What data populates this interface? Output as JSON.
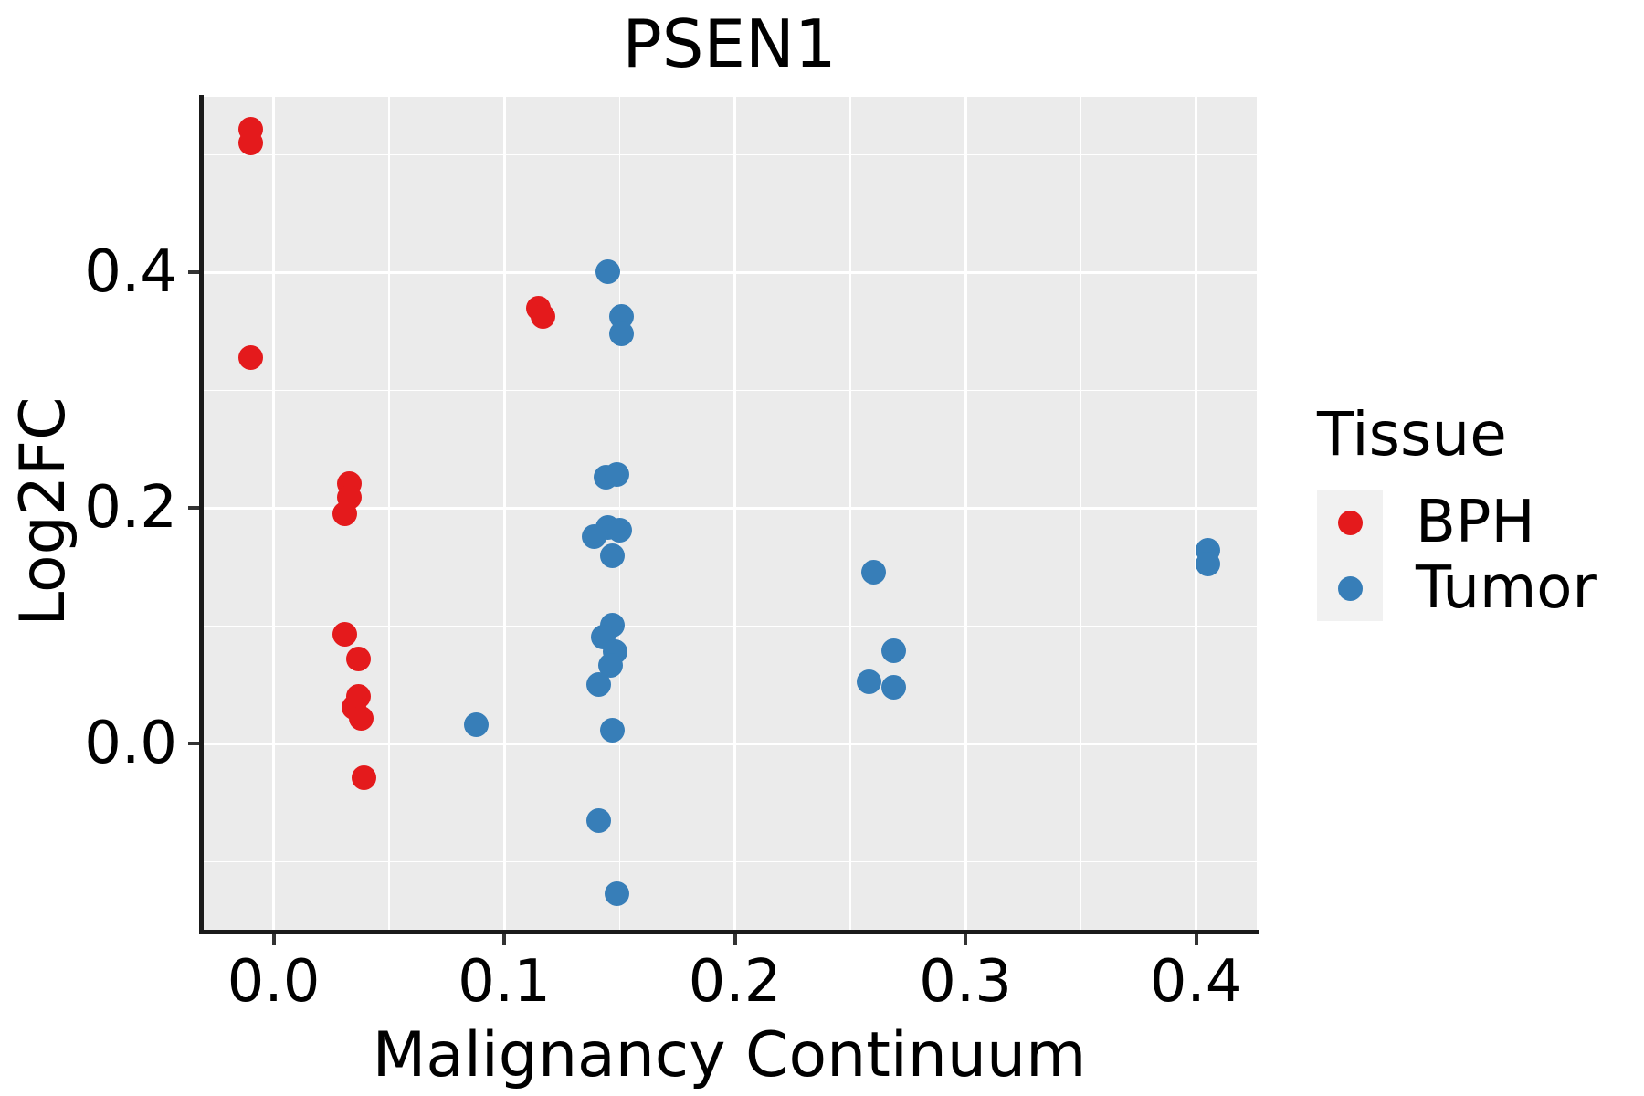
{
  "title": "PSEN1",
  "axes": {
    "x_title": "Malignancy Continuum",
    "y_title": "Log2FC",
    "x_major_ticks": [
      {
        "value": 0.0,
        "label": "0.0"
      },
      {
        "value": 0.1,
        "label": "0.1"
      },
      {
        "value": 0.2,
        "label": "0.2"
      },
      {
        "value": 0.3,
        "label": "0.3"
      },
      {
        "value": 0.4,
        "label": "0.4"
      }
    ],
    "x_minor_ticks": [
      0.05,
      0.15,
      0.25,
      0.35
    ],
    "y_major_ticks": [
      {
        "value": 0.0,
        "label": "0.0"
      },
      {
        "value": 0.2,
        "label": "0.2"
      },
      {
        "value": 0.4,
        "label": "0.4"
      }
    ],
    "y_minor_ticks": [
      -0.1,
      0.1,
      0.3,
      0.5
    ]
  },
  "legend": {
    "title": "Tissue",
    "items": [
      {
        "label": "BPH",
        "color": "#E41A1C"
      },
      {
        "label": "Tumor",
        "color": "#377EB8"
      }
    ]
  },
  "chart_data": {
    "type": "scatter",
    "title": "PSEN1",
    "xlabel": "Malignancy Continuum",
    "ylabel": "Log2FC",
    "xlim": [
      -0.0311,
      0.4263
    ],
    "ylim": [
      -0.1593,
      0.5492
    ],
    "grid": "major-minor-white-on-gray",
    "legend_position": "right",
    "series": [
      {
        "name": "BPH",
        "color": "#E41A1C",
        "points": [
          [
            -0.01,
            0.522
          ],
          [
            -0.01,
            0.51
          ],
          [
            -0.01,
            0.328
          ],
          [
            0.115,
            0.37
          ],
          [
            0.117,
            0.363
          ],
          [
            0.033,
            0.221
          ],
          [
            0.033,
            0.209
          ],
          [
            0.031,
            0.195
          ],
          [
            0.031,
            0.093
          ],
          [
            0.037,
            0.072
          ],
          [
            0.037,
            0.04
          ],
          [
            0.035,
            0.031
          ],
          [
            0.038,
            0.022
          ],
          [
            0.039,
            -0.029
          ]
        ]
      },
      {
        "name": "Tumor",
        "color": "#377EB8",
        "points": [
          [
            0.145,
            0.401
          ],
          [
            0.151,
            0.363
          ],
          [
            0.151,
            0.348
          ],
          [
            0.144,
            0.226
          ],
          [
            0.149,
            0.229
          ],
          [
            0.145,
            0.184
          ],
          [
            0.139,
            0.176
          ],
          [
            0.15,
            0.181
          ],
          [
            0.147,
            0.16
          ],
          [
            0.147,
            0.101
          ],
          [
            0.143,
            0.091
          ],
          [
            0.148,
            0.078
          ],
          [
            0.146,
            0.067
          ],
          [
            0.141,
            0.05
          ],
          [
            0.147,
            0.012
          ],
          [
            0.141,
            -0.065
          ],
          [
            0.149,
            -0.127
          ],
          [
            0.088,
            0.016
          ],
          [
            0.26,
            0.146
          ],
          [
            0.269,
            0.079
          ],
          [
            0.258,
            0.053
          ],
          [
            0.269,
            0.048
          ],
          [
            0.405,
            0.164
          ],
          [
            0.405,
            0.153
          ]
        ]
      }
    ]
  }
}
